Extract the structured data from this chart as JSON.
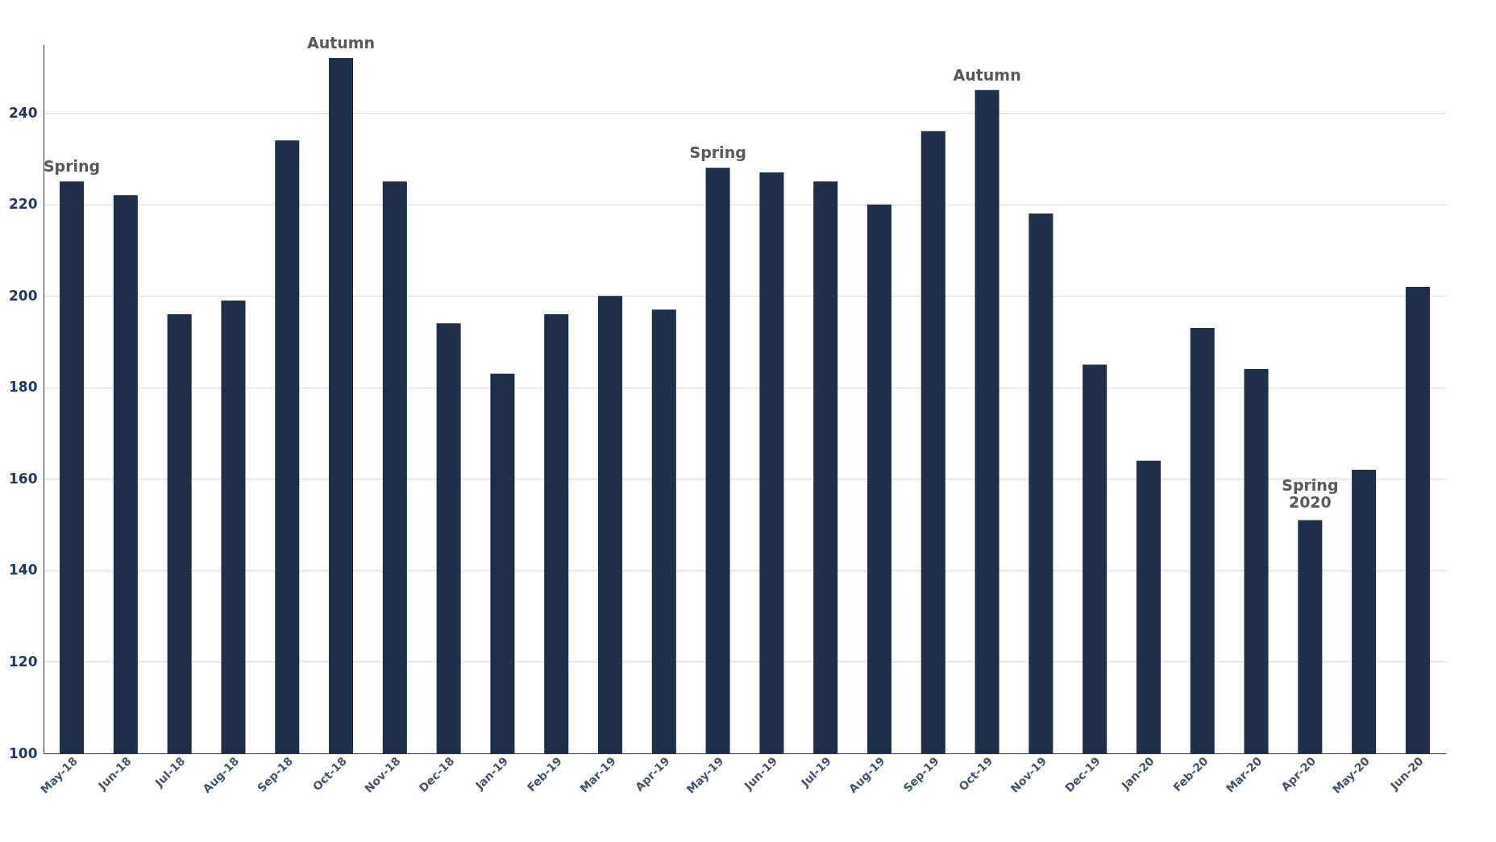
{
  "chart_data": {
    "type": "bar",
    "categories": [
      "May-18",
      "Jun-18",
      "Jul-18",
      "Aug-18",
      "Sep-18",
      "Oct-18",
      "Nov-18",
      "Dec-18",
      "Jan-19",
      "Feb-19",
      "Mar-19",
      "Apr-19",
      "May-19",
      "Jun-19",
      "Jul-19",
      "Aug-19",
      "Sep-19",
      "Oct-19",
      "Nov-19",
      "Dec-19",
      "Jan-20",
      "Feb-20",
      "Mar-20",
      "Apr-20",
      "May-20",
      "Jun-20"
    ],
    "values": [
      225,
      222,
      196,
      199,
      234,
      252,
      225,
      194,
      183,
      196,
      200,
      197,
      228,
      227,
      225,
      220,
      236,
      245,
      218,
      185,
      164,
      193,
      184,
      151,
      162,
      202
    ],
    "color": "#1f2f4a",
    "ylim": [
      100,
      255
    ],
    "yticks": [
      100,
      120,
      140,
      160,
      180,
      200,
      220,
      240
    ],
    "grid": "y",
    "annotations": [
      {
        "text": "Spring",
        "x": "May-18",
        "y": 225
      },
      {
        "text": "Autumn",
        "x": "Oct-18",
        "y": 252
      },
      {
        "text": "Spring",
        "x": "May-19",
        "y": 228
      },
      {
        "text": "Autumn",
        "x": "Oct-19",
        "y": 245
      },
      {
        "text": "Spring\n2020",
        "x": "Apr-20",
        "y": 151
      }
    ]
  }
}
